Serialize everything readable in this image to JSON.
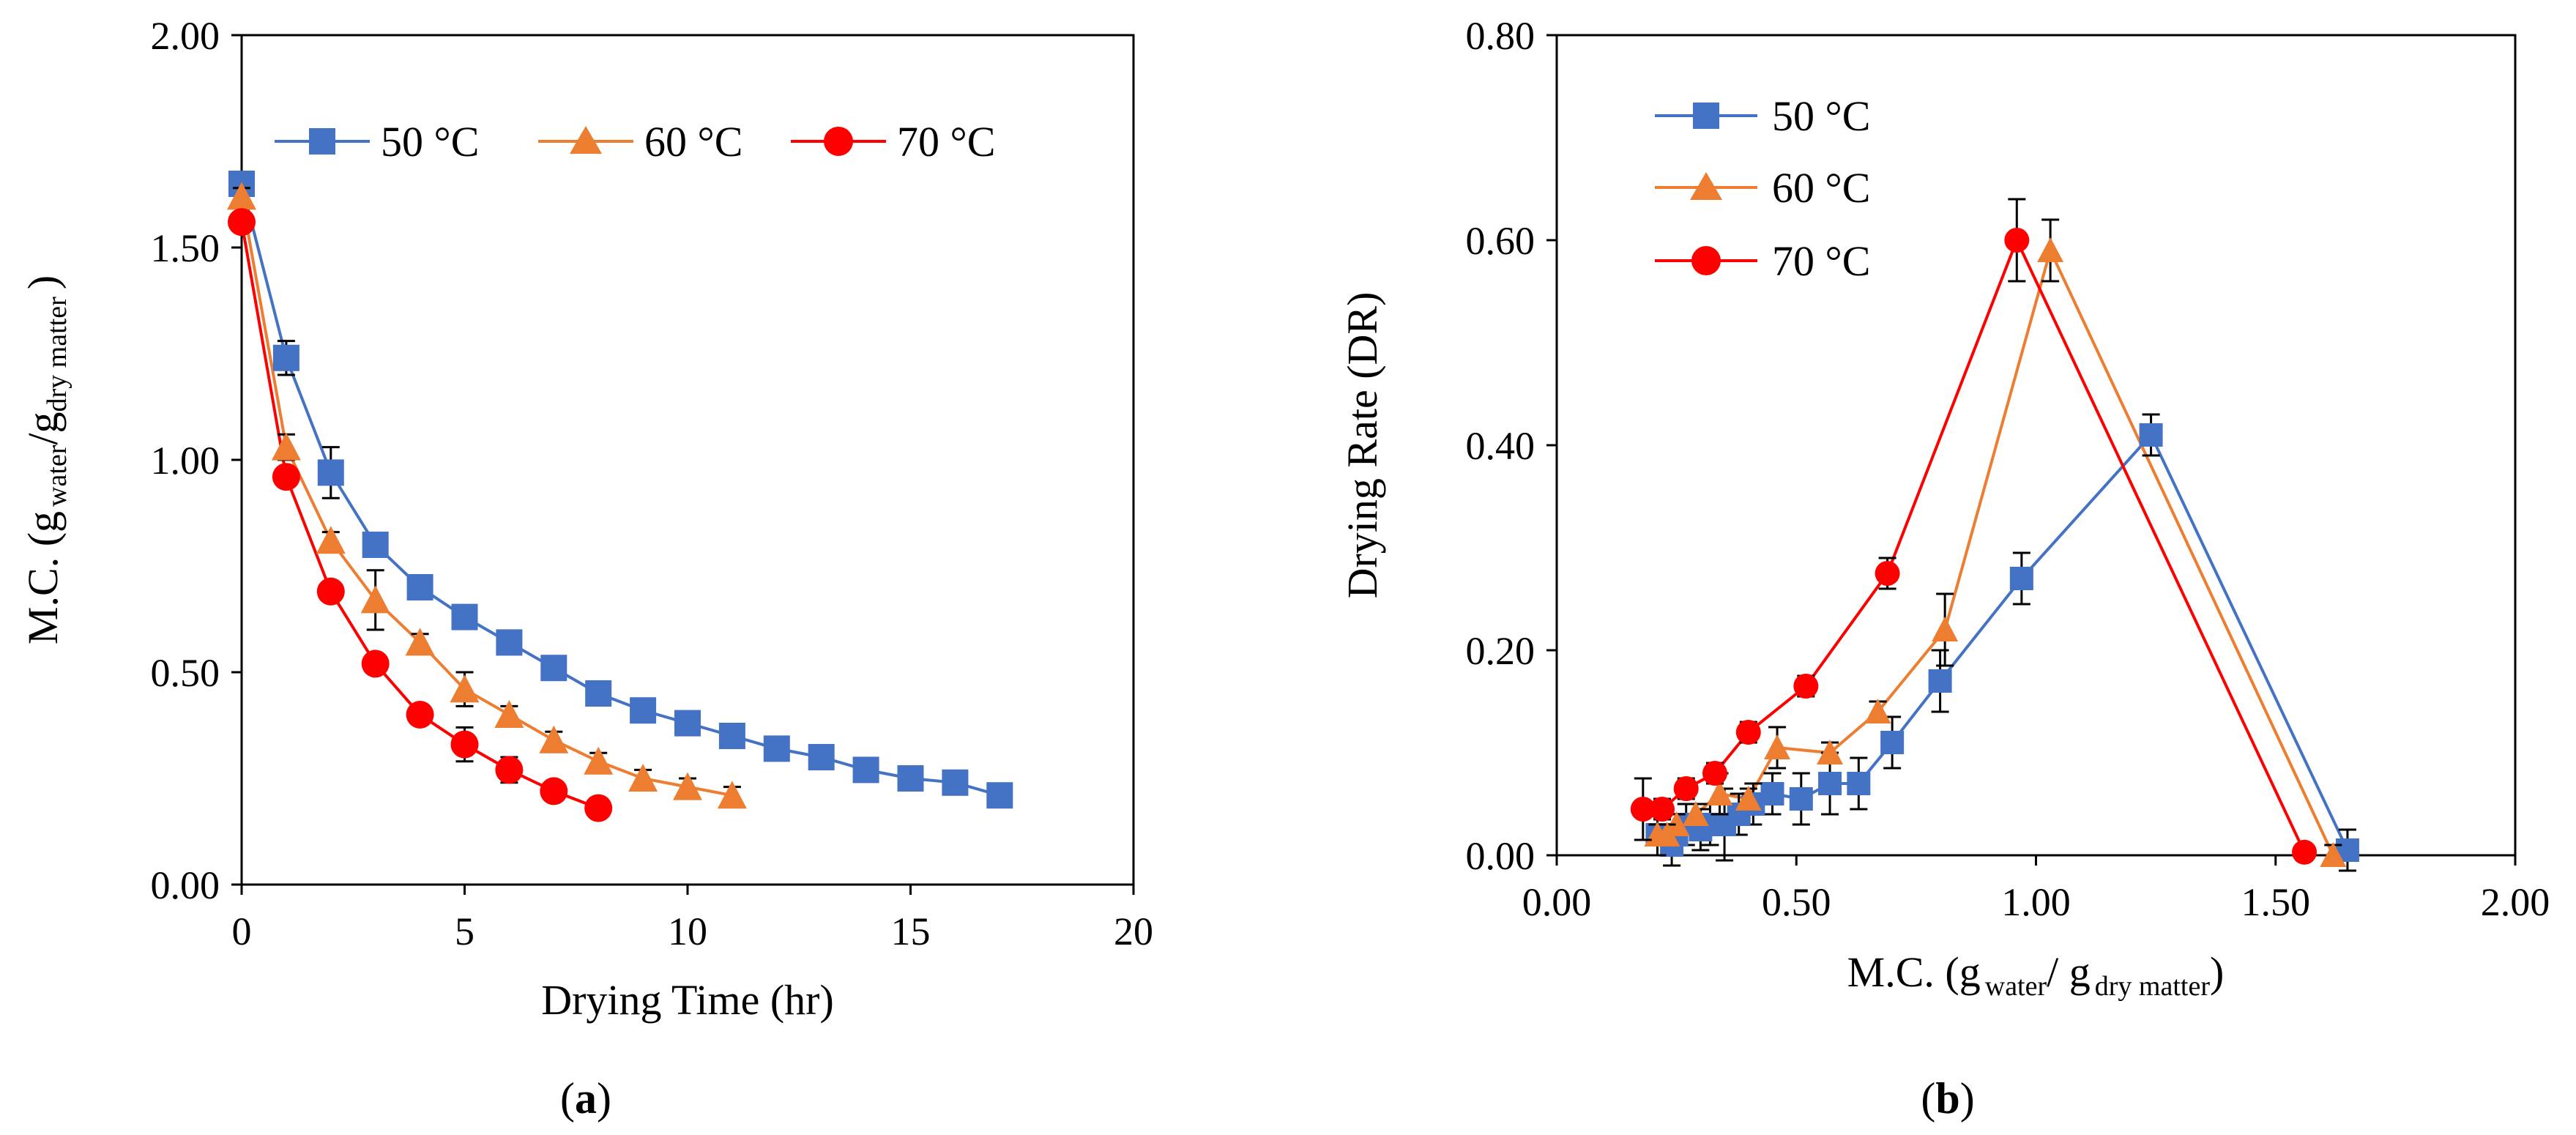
{
  "chart_data": [
    {
      "type": "line",
      "panel_label": {
        "pre": "(",
        "letter": "a",
        "post": ")"
      },
      "xlabel": "Drying Time (hr)",
      "ylabel": {
        "main": "M.C. (g",
        "sub1": "water",
        "mid": "/g",
        "sub2": "dry matter",
        "end": ")"
      },
      "xlim": [
        0,
        20
      ],
      "ylim": [
        0,
        2
      ],
      "xticks": [
        "0",
        "5",
        "10",
        "15",
        "20"
      ],
      "yticks": [
        "0.00",
        "0.50",
        "1.00",
        "1.50",
        "2.00"
      ],
      "legend_position": "top",
      "series": [
        {
          "name": "50 °C",
          "color": "#4472C4",
          "marker": "square",
          "x": [
            0,
            1,
            2,
            3,
            4,
            5,
            6,
            7,
            8,
            9,
            10,
            11,
            12,
            13,
            14,
            15,
            16,
            17
          ],
          "y": [
            1.65,
            1.24,
            0.97,
            0.8,
            0.7,
            0.63,
            0.57,
            0.51,
            0.45,
            0.41,
            0.38,
            0.35,
            0.32,
            0.3,
            0.27,
            0.25,
            0.24,
            0.21
          ],
          "err": [
            0.02,
            0.04,
            0.06,
            0.02,
            0.01,
            0.01,
            0.01,
            0.01,
            0.01,
            0.01,
            0.01,
            0.01,
            0.01,
            0.01,
            0.01,
            0.01,
            0.01,
            0.01
          ]
        },
        {
          "name": "60 °C",
          "color": "#ED7D31",
          "marker": "triangle",
          "x": [
            0,
            1,
            2,
            3,
            4,
            5,
            6,
            7,
            8,
            9,
            10,
            11
          ],
          "y": [
            1.62,
            1.03,
            0.81,
            0.67,
            0.57,
            0.46,
            0.4,
            0.34,
            0.29,
            0.25,
            0.23,
            0.21
          ],
          "err": [
            0.02,
            0.03,
            0.02,
            0.07,
            0.02,
            0.04,
            0.02,
            0.02,
            0.02,
            0.02,
            0.02,
            0.02
          ]
        },
        {
          "name": "70 °C",
          "color": "#FF0000",
          "marker": "circle",
          "x": [
            0,
            1,
            2,
            3,
            4,
            5,
            6,
            7,
            8
          ],
          "y": [
            1.56,
            0.96,
            0.69,
            0.52,
            0.4,
            0.33,
            0.27,
            0.22,
            0.18
          ],
          "err": [
            0.02,
            0.02,
            0.02,
            0.02,
            0.02,
            0.04,
            0.03,
            0.02,
            0.02
          ]
        }
      ]
    },
    {
      "type": "line",
      "panel_label": {
        "pre": "(",
        "letter": "b",
        "post": ")"
      },
      "xlabel": {
        "main": "M.C. (g",
        "sub1": "water",
        "mid": "/ g",
        "sub2": "dry matter",
        "end": ")"
      },
      "ylabel": "Drying Rate (DR)",
      "xlim": [
        0,
        2
      ],
      "ylim": [
        0,
        0.8
      ],
      "xticks": [
        "0.00",
        "0.50",
        "1.00",
        "1.50",
        "2.00"
      ],
      "yticks": [
        "0.00",
        "0.20",
        "0.40",
        "0.60",
        "0.80"
      ],
      "legend_position": "top-left",
      "series": [
        {
          "name": "50 °C",
          "color": "#4472C4",
          "marker": "square",
          "x": [
            1.65,
            1.24,
            0.97,
            0.8,
            0.7,
            0.63,
            0.57,
            0.51,
            0.45,
            0.41,
            0.38,
            0.35,
            0.32,
            0.3,
            0.27,
            0.25,
            0.24,
            0.21
          ],
          "y": [
            0.005,
            0.41,
            0.27,
            0.17,
            0.11,
            0.07,
            0.07,
            0.055,
            0.06,
            0.05,
            0.04,
            0.03,
            0.03,
            0.025,
            0.03,
            0.02,
            0.01,
            0.02
          ],
          "err": [
            0.02,
            0.02,
            0.025,
            0.03,
            0.025,
            0.025,
            0.03,
            0.025,
            0.02,
            0.02,
            0.02,
            0.035,
            0.02,
            0.02,
            0.02,
            0.02,
            0.02,
            0.02
          ]
        },
        {
          "name": "60 °C",
          "color": "#ED7D31",
          "marker": "triangle",
          "x": [
            1.62,
            1.03,
            0.81,
            0.67,
            0.57,
            0.46,
            0.4,
            0.34,
            0.29,
            0.25,
            0.23,
            0.21
          ],
          "y": [
            0.0,
            0.59,
            0.22,
            0.14,
            0.1,
            0.105,
            0.055,
            0.06,
            0.04,
            0.03,
            0.02,
            0.02
          ],
          "err": [
            0.01,
            0.03,
            0.035,
            0.01,
            0.01,
            0.02,
            0.01,
            0.02,
            0.01,
            0.01,
            0.01,
            0.01
          ]
        },
        {
          "name": "70 °C",
          "color": "#FF0000",
          "marker": "circle",
          "x": [
            1.56,
            0.96,
            0.69,
            0.52,
            0.4,
            0.33,
            0.27,
            0.22,
            0.18
          ],
          "y": [
            0.003,
            0.6,
            0.275,
            0.165,
            0.12,
            0.08,
            0.065,
            0.045,
            0.045
          ],
          "err": [
            0.005,
            0.04,
            0.015,
            0.01,
            0.01,
            0.01,
            0.01,
            0.01,
            0.03
          ]
        }
      ]
    }
  ]
}
